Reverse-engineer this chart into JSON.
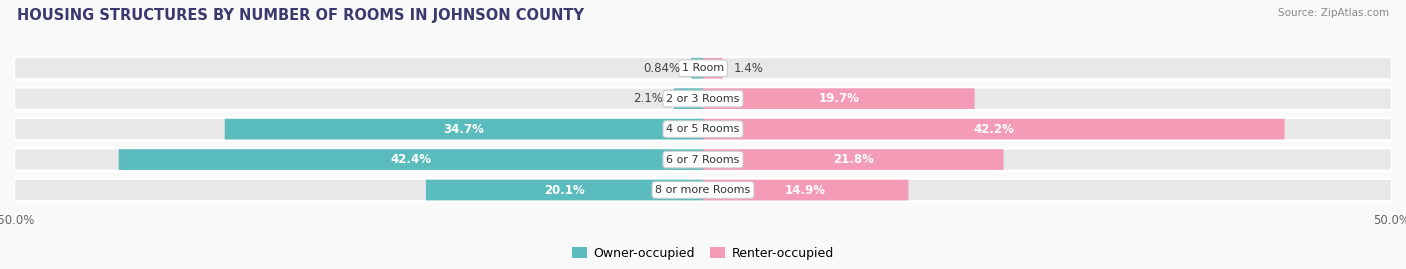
{
  "title": "HOUSING STRUCTURES BY NUMBER OF ROOMS IN JOHNSON COUNTY",
  "source": "Source: ZipAtlas.com",
  "categories": [
    "1 Room",
    "2 or 3 Rooms",
    "4 or 5 Rooms",
    "6 or 7 Rooms",
    "8 or more Rooms"
  ],
  "owner_values": [
    0.84,
    2.1,
    34.7,
    42.4,
    20.1
  ],
  "renter_values": [
    1.4,
    19.7,
    42.2,
    21.8,
    14.9
  ],
  "owner_color": "#5bbcbe",
  "renter_color": "#f49bb5",
  "bar_bg_color": "#e8e8e8",
  "bar_height": 0.72,
  "xlim_left": -50,
  "xlim_right": 50,
  "title_fontsize": 10.5,
  "label_fontsize": 8.5,
  "category_fontsize": 8,
  "source_fontsize": 7.5,
  "legend_fontsize": 9,
  "background_color": "#f9f9f9",
  "title_color": "#3a3a6e",
  "bar_gap": 1.0
}
